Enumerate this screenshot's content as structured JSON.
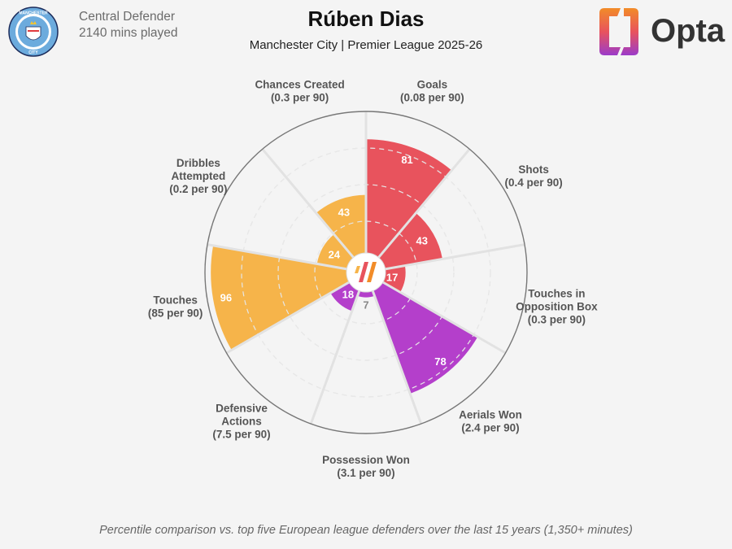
{
  "header": {
    "title": "Rúben Dias",
    "subtitle": "Manchester City | Premier League 2025-26",
    "position": "Central Defender",
    "minutes": "2140 mins played",
    "club_badge_text_top": "MANCHESTER",
    "club_badge_text_bottom": "CITY",
    "brand": "Opta"
  },
  "footer": {
    "note": "Percentile comparison vs. top five European league defenders over the last 15 years (1,350+ minutes)"
  },
  "colors": {
    "attack": "#e8535d",
    "possession": "#f6b44a",
    "defense": "#b43fcb",
    "grid": "#cfcfcf",
    "background": "#f4f4f4",
    "ring_outline": "#777777"
  },
  "chart_data": {
    "type": "pie",
    "subtype": "polar-area",
    "scale": [
      0,
      100
    ],
    "categories": [
      {
        "name": "Goals",
        "rate": "(0.08 per 90)",
        "value": 81,
        "group": "attack"
      },
      {
        "name": "Shots",
        "rate": "(0.4 per 90)",
        "value": 43,
        "group": "attack"
      },
      {
        "name": "Touches in Opposition Box",
        "lines": [
          "Touches in",
          "Opposition Box"
        ],
        "rate": "(0.3 per 90)",
        "value": 17,
        "group": "attack"
      },
      {
        "name": "Aerials Won",
        "rate": "(2.4 per 90)",
        "value": 78,
        "group": "defense"
      },
      {
        "name": "Possession Won",
        "rate": "(3.1 per 90)",
        "value": 7,
        "group": "defense"
      },
      {
        "name": "Defensive Actions",
        "lines": [
          "Defensive",
          "Actions"
        ],
        "rate": "(7.5 per 90)",
        "value": 18,
        "group": "defense"
      },
      {
        "name": "Touches",
        "rate": "(85 per 90)",
        "value": 96,
        "group": "possession"
      },
      {
        "name": "Dribbles Attempted",
        "lines": [
          "Dribbles",
          "Attempted"
        ],
        "rate": "(0.2 per 90)",
        "value": 24,
        "group": "possession"
      },
      {
        "name": "Chances Created",
        "rate": "(0.3 per 90)",
        "value": 43,
        "group": "possession"
      }
    ]
  }
}
